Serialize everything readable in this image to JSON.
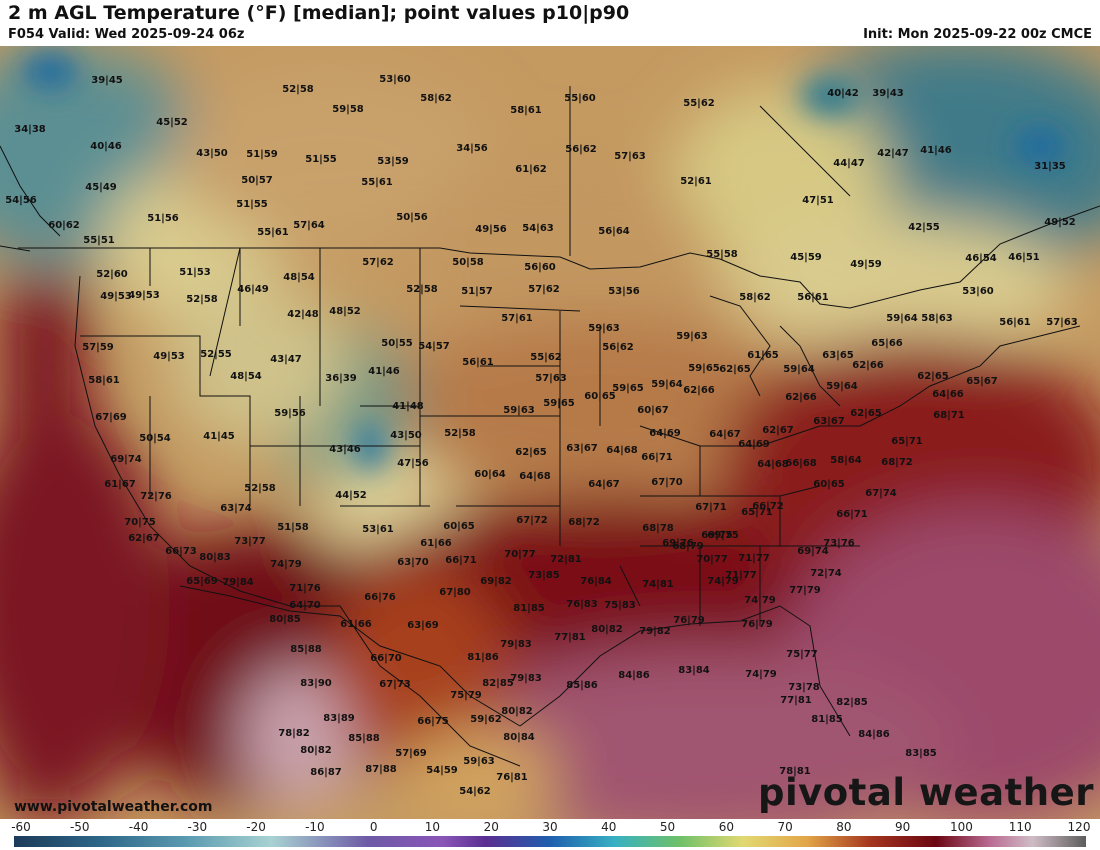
{
  "header": {
    "title": "2 m AGL Temperature (°F) [median]; point values p10|p90",
    "valid": "F054 Valid: Wed 2025-09-24 06z",
    "init": "Init: Mon 2025-09-22 00z CMCE"
  },
  "footer": {
    "site": "www.pivotalweather.com",
    "brand": "pivotal weather"
  },
  "legend": {
    "ticks": [
      "-60",
      "-50",
      "-40",
      "-30",
      "-20",
      "-10",
      "0",
      "10",
      "20",
      "30",
      "40",
      "50",
      "60",
      "70",
      "80",
      "90",
      "100",
      "110",
      "120"
    ]
  },
  "point_values": [
    "39|45",
    "53|60",
    "52|58",
    "58|62",
    "55|60",
    "55|62",
    "40|42",
    "39|43",
    "34|38",
    "45|52",
    "59|58",
    "58|61",
    "40|46",
    "43|50",
    "51|59",
    "51|55",
    "53|59",
    "34|56",
    "56|62",
    "57|63",
    "44|47",
    "42|47",
    "41|46",
    "45|49",
    "50|57",
    "55|61",
    "61|62",
    "52|61",
    "31|35",
    "54|56",
    "51|56",
    "51|55",
    "50|56",
    "47|51",
    "49|52",
    "60|62",
    "55|61",
    "57|64",
    "49|56",
    "54|63",
    "56|64",
    "42|55",
    "55|51",
    "52|60",
    "49|53",
    "51|53",
    "46|49",
    "48|54",
    "57|62",
    "50|58",
    "56|60",
    "52|58",
    "55|58",
    "45|59",
    "49|59",
    "46|54",
    "46|51",
    "49|53",
    "52|58",
    "51|57",
    "57|62",
    "53|56",
    "58|62",
    "56|61",
    "53|60",
    "59|64",
    "58|63",
    "56|61",
    "57|63",
    "42|48",
    "48|52",
    "57|61",
    "59|63",
    "57|59",
    "49|53",
    "52|55",
    "43|47",
    "50|55",
    "54|57",
    "56|61",
    "55|62",
    "56|62",
    "59|63",
    "61|65",
    "63|65",
    "65|66",
    "59|64",
    "62|66",
    "58|61",
    "48|54",
    "36|39",
    "41|46",
    "57|63",
    "59|65",
    "59|65",
    "62|65",
    "59|64",
    "62|65",
    "65|67",
    "59|56",
    "41|48",
    "59|63",
    "59|65",
    "60|65",
    "60|67",
    "59|64",
    "62|66",
    "62|66",
    "62|65",
    "64|66",
    "68|71",
    "67|69",
    "50|54",
    "41|45",
    "43|50",
    "52|58",
    "62|65",
    "63|67",
    "64|68",
    "64|69",
    "64|67",
    "62|67",
    "63|67",
    "65|71",
    "43|46",
    "47|56",
    "60|64",
    "64|68",
    "66|71",
    "64|69",
    "64|68",
    "66|68",
    "58|64",
    "68|72",
    "69|74",
    "52|58",
    "44|52",
    "64|67",
    "67|70",
    "67|71",
    "66|72",
    "60|65",
    "67|74",
    "61|67",
    "72|76",
    "63|74",
    "60|65",
    "67|72",
    "68|72",
    "65|71",
    "66|71",
    "70|75",
    "51|58",
    "53|61",
    "61|66",
    "68|78",
    "68|79",
    "69|75",
    "73|76",
    "62|67",
    "73|77",
    "69|76",
    "69|75",
    "71|77",
    "69|74",
    "66|73",
    "80|83",
    "74|79",
    "63|70",
    "66|71",
    "70|77",
    "70|77",
    "72|74",
    "79|84",
    "65|69",
    "71|76",
    "72|81",
    "67|80",
    "69|82",
    "73|85",
    "76|84",
    "74|81",
    "74|79",
    "71|77",
    "77|79",
    "64|70",
    "66|76",
    "80|85",
    "81|85",
    "76|83",
    "75|83",
    "74|79",
    "61|66",
    "63|69",
    "79|83",
    "80|82",
    "77|81",
    "79|82",
    "76|79",
    "76|79",
    "85|88",
    "66|70",
    "81|86",
    "75|77",
    "83|90",
    "67|73",
    "79|83",
    "82|85",
    "85|86",
    "84|86",
    "83|84",
    "74|79",
    "73|78",
    "75|79",
    "80|82",
    "77|81",
    "82|85",
    "83|89",
    "66|75",
    "59|62",
    "81|85",
    "85|88",
    "80|84",
    "84|86",
    "78|82",
    "80|82",
    "57|69",
    "59|63",
    "83|85",
    "87|88",
    "54|59",
    "76|81",
    "86|87",
    "54|62",
    "78|81"
  ]
}
